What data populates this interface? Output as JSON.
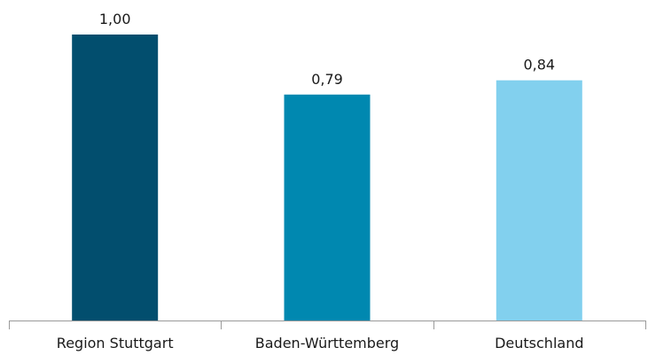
{
  "chart_data": {
    "type": "bar",
    "categories": [
      "Region Stuttgart",
      "Baden-Württemberg",
      "Deutschland"
    ],
    "values": [
      1.0,
      0.79,
      0.84
    ],
    "value_labels": [
      "1,00",
      "0,79",
      "0,84"
    ],
    "colors": [
      "#024e6e",
      "#0088b0",
      "#82d0ee"
    ],
    "ylim": [
      0,
      1.0
    ],
    "grid": false,
    "legend": "none",
    "title": "",
    "xlabel": "",
    "ylabel": ""
  }
}
